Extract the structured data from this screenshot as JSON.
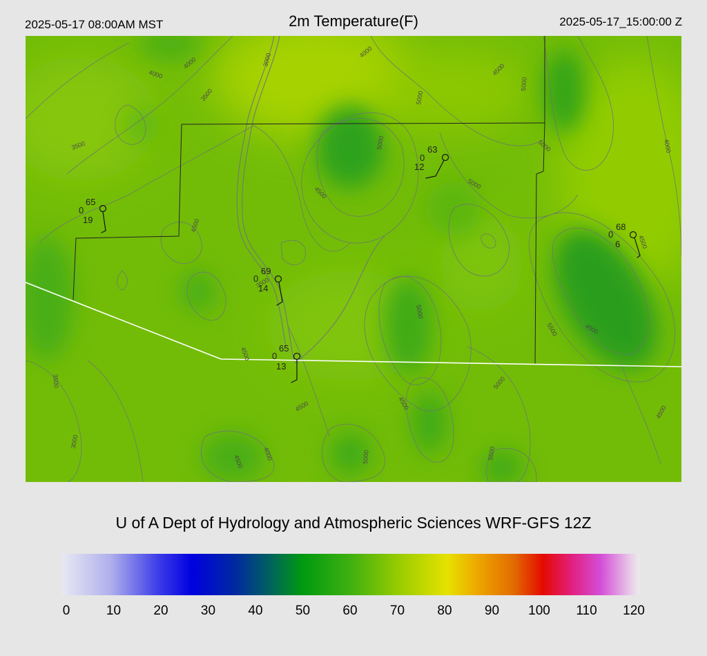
{
  "header": {
    "local_time": "2025-05-17 08:00AM MST",
    "title": "2m Temperature(F)",
    "utc_time": "2025-05-17_15:00:00 Z"
  },
  "footer": {
    "credit": "U of A Dept of Hydrology and Atmospheric Sciences WRF-GFS 12Z"
  },
  "colorbar": {
    "min": 0,
    "max": 120,
    "ticks": [
      "0",
      "10",
      "20",
      "30",
      "40",
      "50",
      "60",
      "70",
      "80",
      "90",
      "100",
      "110",
      "120"
    ],
    "stops": [
      {
        "value": 0,
        "color": "#e8e8f4"
      },
      {
        "value": 10,
        "color": "#b0b0ec"
      },
      {
        "value": 20,
        "color": "#3c3ce8"
      },
      {
        "value": 27,
        "color": "#0000e0"
      },
      {
        "value": 36,
        "color": "#002aa0"
      },
      {
        "value": 43,
        "color": "#006060"
      },
      {
        "value": 50,
        "color": "#009a10"
      },
      {
        "value": 60,
        "color": "#40b010"
      },
      {
        "value": 70,
        "color": "#98cc00"
      },
      {
        "value": 80,
        "color": "#e6e200"
      },
      {
        "value": 86,
        "color": "#eeaa00"
      },
      {
        "value": 94,
        "color": "#e26a00"
      },
      {
        "value": 100,
        "color": "#e40a00"
      },
      {
        "value": 106,
        "color": "#e22080"
      },
      {
        "value": 112,
        "color": "#d44ed8"
      },
      {
        "value": 118,
        "color": "#e8c8e8"
      },
      {
        "value": 120,
        "color": "#ececec"
      }
    ]
  },
  "stations": [
    {
      "temp": "65",
      "precip": "0",
      "dew": "19"
    },
    {
      "temp": "63",
      "precip": "0",
      "dew": "12"
    },
    {
      "temp": "69",
      "precip": "0",
      "dew": "14"
    },
    {
      "temp": "68",
      "precip": "0",
      "dew": "6"
    },
    {
      "temp": "65",
      "precip": "0",
      "dew": "13"
    }
  ],
  "contour_labels": [
    "4000",
    "4000",
    "3000",
    "4000",
    "4500",
    "5000",
    "3500",
    "3500",
    "5000",
    "5000",
    "5000",
    "4000",
    "4500",
    "5000",
    "4500",
    "4500",
    "5000",
    "4500",
    "5500",
    "3500",
    "4500",
    "4500",
    "3000",
    "4500",
    "4000",
    "5000",
    "5000",
    "4500",
    "5500",
    "4500",
    "3500"
  ],
  "colors": {
    "background": "#e6e6e6",
    "border_county": "#222222",
    "border_state": "#ffffff",
    "contour": "#6a7a6a"
  }
}
